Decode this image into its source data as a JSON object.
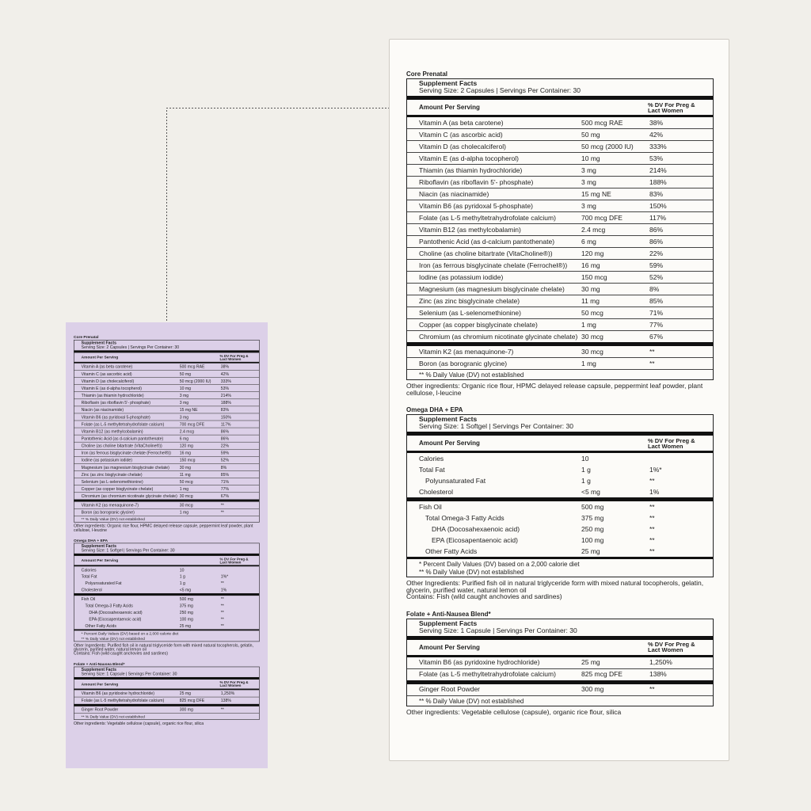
{
  "sections": [
    {
      "title": "Core Prenatal",
      "facts_title": "Supplement Facts",
      "serving": "Serving Size: 2 Capsules  |  Servings Per Container: 30",
      "col_amount": "Amount Per Serving",
      "col_dv": "% DV For Preg & Lact Women",
      "groups": [
        [
          {
            "name": "Vitamin A (as beta carotene)",
            "amount": "500 mcg RAE",
            "dv": "38%"
          },
          {
            "name": "Vitamin C (as ascorbic acid)",
            "amount": "50 mg",
            "dv": "42%"
          },
          {
            "name": "Vitamin D (as cholecalciferol)",
            "amount": "50 mcg (2000 IU)",
            "dv": "333%"
          },
          {
            "name": "Vitamin E (as d-alpha tocopherol)",
            "amount": "10 mg",
            "dv": "53%"
          },
          {
            "name": "Thiamin (as thiamin hydrochloride)",
            "amount": "3 mg",
            "dv": "214%"
          },
          {
            "name": "Riboflavin (as riboflavin 5'- phosphate)",
            "amount": "3 mg",
            "dv": "188%"
          },
          {
            "name": "Niacin (as niacinamide)",
            "amount": "15 mg NE",
            "dv": "83%"
          },
          {
            "name": "Vitamin B6 (as pyridoxal 5-phosphate)",
            "amount": "3 mg",
            "dv": "150%"
          },
          {
            "name": "Folate (as L-5 methyltetrahydrofolate calcium)",
            "amount": "700 mcg DFE",
            "dv": "117%"
          },
          {
            "name": "Vitamin B12 (as methylcobalamin)",
            "amount": "2.4 mcg",
            "dv": "86%"
          },
          {
            "name": "Pantothenic Acid (as d-calcium pantothenate)",
            "amount": "6 mg",
            "dv": "86%"
          },
          {
            "name": "Choline (as choline bitartrate (VitaCholine®))",
            "amount": "120 mg",
            "dv": "22%"
          },
          {
            "name": "Iron (as ferrous bisglycinate chelate (Ferrochel®))",
            "amount": "16 mg",
            "dv": "59%"
          },
          {
            "name": "Iodine (as potassium iodide)",
            "amount": "150 mcg",
            "dv": "52%"
          },
          {
            "name": "Magnesium (as magnesium bisglycinate chelate)",
            "amount": "30 mg",
            "dv": "8%"
          },
          {
            "name": "Zinc (as zinc bisglycinate chelate)",
            "amount": "11 mg",
            "dv": "85%"
          },
          {
            "name": "Selenium (as L-selenomethionine)",
            "amount": "50 mcg",
            "dv": "71%"
          },
          {
            "name": "Copper (as copper bisglycinate chelate)",
            "amount": "1 mg",
            "dv": "77%"
          },
          {
            "name": "Chromium (as chromium nicotinate glycinate chelate)",
            "amount": "30 mcg",
            "dv": "67%"
          }
        ],
        [
          {
            "name": "Vitamin K2 (as menaquinone-7)",
            "amount": "30 mcg",
            "dv": "**"
          },
          {
            "name": "Boron (as borogranic glycine)",
            "amount": "1 mg",
            "dv": "**"
          }
        ]
      ],
      "notes": [
        "** % Daily Value (DV) not established"
      ],
      "other": [
        "Other ingredients: Organic rice flour, HPMC delayed release capsule, peppermint leaf powder, plant cellulose, l-leucine"
      ]
    },
    {
      "title": "Omega DHA + EPA",
      "facts_title": "Supplement Facts",
      "serving": "Serving Size: 1 Softgel  |  Servings Per Container: 30",
      "col_amount": "Amount Per Serving",
      "col_dv": "% DV For Preg & Lact Women",
      "groups": [
        [
          {
            "name": "Calories",
            "amount": "10"
          },
          {
            "name": "Total Fat",
            "amount": "1 g",
            "dv": "1%*",
            "sub": [
              {
                "name": "Polyunsaturated Fat",
                "amount": "1 g",
                "dv": "**"
              }
            ]
          },
          {
            "name": "Cholesterol",
            "amount": "<5 mg",
            "dv": "1%"
          }
        ],
        [
          {
            "name": "Fish Oil",
            "amount": "500 mg",
            "dv": "**",
            "sub": [
              {
                "name": "Total Omega-3 Fatty Acids",
                "amount": "375 mg",
                "dv": "**",
                "sub": [
                  {
                    "name": "DHA (Docosahexaenoic acid)",
                    "amount": "250 mg",
                    "dv": "**"
                  },
                  {
                    "name": "EPA (Eicosapentaenoic acid)",
                    "amount": "100 mg",
                    "dv": "**"
                  }
                ]
              },
              {
                "name": "Other Fatty Acids",
                "amount": "25 mg",
                "dv": "**"
              }
            ]
          }
        ]
      ],
      "notes": [
        "*  Percent Daily Values (DV) based on a 2,000 calorie diet",
        "** % Daily Value (DV) not established"
      ],
      "other": [
        "Other Ingredients: Purified fish oil in natural triglyceride form with mixed natural tocopherols, gelatin, glycerin, purified water, natural lemon oil",
        "Contains: Fish (wild caught anchovies and sardines)"
      ]
    },
    {
      "title": "Folate + Anti-Nausea Blend*",
      "facts_title": "Supplement Facts",
      "serving": "Serving Size: 1 Capsule  |  Servings Per Container: 30",
      "col_amount": "Amount Per Serving",
      "col_dv": "% DV For Preg & Lact Women",
      "groups": [
        [
          {
            "name": "Vitamin B6 (as pyridoxine hydrochloride)",
            "amount": "25 mg",
            "dv": "1,250%"
          },
          {
            "name": "Folate  (as L-5 methyltetrahydrofolate calcium)",
            "amount": "825 mcg DFE",
            "dv": "138%"
          }
        ],
        [
          {
            "name": "Ginger Root Powder",
            "amount": "300 mg",
            "dv": "**"
          }
        ]
      ],
      "notes": [
        "** % Daily Value (DV) not established"
      ],
      "other": [
        "Other ingredients: Vegetable cellulose (capsule), organic rice flour, silica"
      ]
    }
  ]
}
